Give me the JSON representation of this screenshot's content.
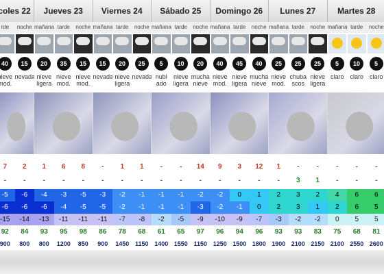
{
  "days": [
    {
      "name": "coles 22",
      "periods": [
        {
          "label": "rde",
          "wind": 40,
          "desc": "nieve mod.",
          "precip": 7,
          "snow": "-",
          "t1": -5,
          "t2": -6,
          "t3": -15,
          "humidity": 92,
          "snow_level": 900
        },
        {
          "label": "noche",
          "wind": 15,
          "desc": "nevadas",
          "precip": 2,
          "snow": "-",
          "t1": -6,
          "t2": -6,
          "t3": -14,
          "humidity": 84,
          "snow_level": 800
        }
      ]
    },
    {
      "name": "Jueves 23",
      "periods": [
        {
          "label": "mañana",
          "wind": 20,
          "desc": "nieve ligera",
          "precip": 1,
          "snow": "-",
          "t1": -4,
          "t2": -6,
          "t3": -13,
          "humidity": 93,
          "snow_level": 800
        },
        {
          "label": "tarde",
          "wind": 35,
          "desc": "nieve mod.",
          "precip": 6,
          "snow": "-",
          "t1": -3,
          "t2": -4,
          "t3": -11,
          "humidity": 95,
          "snow_level": 1200
        },
        {
          "label": "noche",
          "wind": 15,
          "desc": "nieve mod.",
          "precip": 8,
          "snow": "-",
          "t1": -5,
          "t2": -5,
          "t3": -11,
          "humidity": 98,
          "snow_level": 850
        }
      ]
    },
    {
      "name": "Viernes 24",
      "periods": [
        {
          "label": "mañana",
          "wind": 15,
          "desc": "nevadas",
          "precip": "-",
          "snow": "-",
          "t1": -3,
          "t2": -5,
          "t3": -11,
          "humidity": 86,
          "snow_level": 900
        },
        {
          "label": "tarde",
          "wind": 20,
          "desc": "nieve ligera",
          "precip": 1,
          "snow": "-",
          "t1": -2,
          "t2": -2,
          "t3": -7,
          "humidity": 78,
          "snow_level": 1450
        },
        {
          "label": "noche",
          "wind": 25,
          "desc": "nevadas",
          "precip": 1,
          "snow": "-",
          "t1": -1,
          "t2": -1,
          "t3": -8,
          "humidity": 68,
          "snow_level": 1150
        }
      ]
    },
    {
      "name": "Sábado 25",
      "periods": [
        {
          "label": "mañana",
          "wind": 5,
          "desc": "nubl ado",
          "precip": "-",
          "snow": "-",
          "t1": -1,
          "t2": -1,
          "t3": -2,
          "humidity": 61,
          "snow_level": 1400
        },
        {
          "label": "tarde",
          "wind": 10,
          "desc": "nieve ligera",
          "precip": "-",
          "snow": "-",
          "t1": -1,
          "t2": -1,
          "t3": -5,
          "humidity": 65,
          "snow_level": 1550
        },
        {
          "label": "noche",
          "wind": 20,
          "desc": "mucha nieve",
          "precip": 14,
          "snow": "-",
          "t1": -2,
          "t2": -3,
          "t3": -9,
          "humidity": 97,
          "snow_level": 1150
        }
      ]
    },
    {
      "name": "Domingo 26",
      "periods": [
        {
          "label": "mañana",
          "wind": 40,
          "desc": "nieve mod.",
          "precip": 9,
          "snow": "-",
          "t1": -2,
          "t2": -2,
          "t3": -10,
          "humidity": 96,
          "snow_level": 1250
        },
        {
          "label": "tarde",
          "wind": 45,
          "desc": "nieve ligera",
          "precip": 3,
          "snow": "-",
          "t1": 0,
          "t2": -1,
          "t3": -9,
          "humidity": 94,
          "snow_level": 1500
        },
        {
          "label": "noche",
          "wind": 40,
          "desc": "mucha nieve",
          "precip": 12,
          "snow": "-",
          "t1": 1,
          "t2": 0,
          "t3": -7,
          "humidity": 96,
          "snow_level": 1800
        }
      ]
    },
    {
      "name": "Lunes 27",
      "periods": [
        {
          "label": "mañana",
          "wind": 25,
          "desc": "nieve mod.",
          "precip": 1,
          "snow": "-",
          "t1": 2,
          "t2": 2,
          "t3": -3,
          "humidity": 93,
          "snow_level": 1900
        },
        {
          "label": "tarde",
          "wind": 25,
          "desc": "chuba scos",
          "precip": "-",
          "snow": 3,
          "t1": 3,
          "t2": 3,
          "t3": -2,
          "humidity": 93,
          "snow_level": 2100
        },
        {
          "label": "noche",
          "wind": 25,
          "desc": "nieve ligera",
          "precip": "-",
          "snow": 1,
          "t1": 2,
          "t2": 1,
          "t3": -2,
          "humidity": 83,
          "snow_level": 2150
        }
      ]
    },
    {
      "name": "Martes 28",
      "periods": [
        {
          "label": "mañana",
          "wind": 5,
          "desc": "claro",
          "precip": "-",
          "snow": "-",
          "t1": 4,
          "t2": 2,
          "t3": 0,
          "humidity": 75,
          "snow_level": 2100
        },
        {
          "label": "tarde",
          "wind": 10,
          "desc": "claro",
          "precip": "-",
          "snow": "-",
          "t1": 6,
          "t2": 6,
          "t3": 5,
          "humidity": 68,
          "snow_level": 2550
        },
        {
          "label": "noche",
          "wind": 5,
          "desc": "claro",
          "precip": "-",
          "snow": "-",
          "t1": 6,
          "t2": 5,
          "t3": 5,
          "humidity": 81,
          "snow_level": 2600
        }
      ]
    }
  ]
}
